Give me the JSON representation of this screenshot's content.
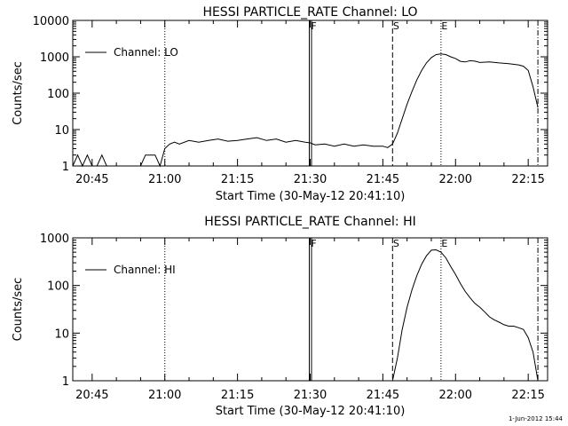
{
  "footer_date": "1-Jun-2012 15:44",
  "chart_data": [
    {
      "type": "line",
      "title": "HESSI PARTICLE_RATE Channel: LO",
      "xlabel": "Start Time (30-May-12 20:41:10)",
      "ylabel": "Counts/sec",
      "y_scale": "log",
      "ylim": [
        1,
        10000
      ],
      "y_ticks": [
        1,
        10,
        100,
        1000,
        10000
      ],
      "y_tick_labels": [
        "1",
        "10",
        "100",
        "1000",
        "10000"
      ],
      "xlim": [
        "20:41",
        "22:19"
      ],
      "x_ticks": [
        "20:45",
        "21:00",
        "21:15",
        "21:30",
        "21:45",
        "22:00",
        "22:15"
      ],
      "legend": {
        "label": "Channel: LO",
        "placement": "top-left"
      },
      "markers": [
        {
          "label": "F",
          "time": "21:30",
          "style": "solid-double"
        },
        {
          "label": "S",
          "time": "21:47",
          "style": "dashed"
        },
        {
          "label": "E",
          "time": "21:57",
          "style": "dotted"
        }
      ],
      "verticals": [
        {
          "time": "21:00",
          "style": "dotted"
        },
        {
          "time": "22:17",
          "style": "dashdot"
        }
      ],
      "series": [
        {
          "name": "Channel: LO",
          "x": [
            "20:41",
            "20:42",
            "20:43",
            "20:44",
            "20:45",
            "20:46",
            "20:47",
            "20:48",
            "20:49",
            "20:50",
            "20:51",
            "20:52",
            "20:53",
            "20:54",
            "20:55",
            "20:56",
            "20:57",
            "20:58",
            "20:59",
            "21:00",
            "21:01",
            "21:02",
            "21:03",
            "21:05",
            "21:07",
            "21:09",
            "21:11",
            "21:13",
            "21:15",
            "21:17",
            "21:19",
            "21:21",
            "21:23",
            "21:25",
            "21:27",
            "21:29",
            "21:30",
            "21:31",
            "21:33",
            "21:35",
            "21:37",
            "21:39",
            "21:41",
            "21:43",
            "21:45",
            "21:46",
            "21:47",
            "21:48",
            "21:49",
            "21:50",
            "21:51",
            "21:52",
            "21:53",
            "21:54",
            "21:55",
            "21:56",
            "21:57",
            "21:58",
            "21:59",
            "22:00",
            "22:01",
            "22:02",
            "22:03",
            "22:04",
            "22:05",
            "22:07",
            "22:09",
            "22:11",
            "22:13",
            "22:14",
            "22:15",
            "22:16",
            "22:17"
          ],
          "y": [
            1,
            2,
            1,
            2,
            1,
            1,
            2,
            1,
            1,
            1,
            1,
            1,
            1,
            1,
            1,
            2,
            2,
            2,
            1,
            3,
            4,
            4.5,
            4,
            5,
            4.5,
            5,
            5.5,
            4.8,
            5,
            5.5,
            6,
            5,
            5.5,
            4.5,
            5,
            4.5,
            4.3,
            3.8,
            4,
            3.5,
            4,
            3.5,
            3.8,
            3.5,
            3.5,
            3.2,
            4,
            8,
            20,
            50,
            110,
            230,
            420,
            680,
            950,
            1150,
            1200,
            1150,
            1000,
            900,
            750,
            720,
            780,
            760,
            700,
            720,
            680,
            650,
            600,
            550,
            420,
            150,
            40
          ]
        }
      ]
    },
    {
      "type": "line",
      "title": "HESSI PARTICLE_RATE Channel: HI",
      "xlabel": "Start Time (30-May-12 20:41:10)",
      "ylabel": "Counts/sec",
      "y_scale": "log",
      "ylim": [
        1,
        1000
      ],
      "y_ticks": [
        1,
        10,
        100,
        1000
      ],
      "y_tick_labels": [
        "1",
        "10",
        "100",
        "1000"
      ],
      "xlim": [
        "20:41",
        "22:19"
      ],
      "x_ticks": [
        "20:45",
        "21:00",
        "21:15",
        "21:30",
        "21:45",
        "22:00",
        "22:15"
      ],
      "legend": {
        "label": "Channel: HI",
        "placement": "top-left"
      },
      "markers": [
        {
          "label": "F",
          "time": "21:30",
          "style": "solid-double"
        },
        {
          "label": "S",
          "time": "21:47",
          "style": "dashed"
        },
        {
          "label": "E",
          "time": "21:57",
          "style": "dotted"
        }
      ],
      "verticals": [
        {
          "time": "21:00",
          "style": "dotted"
        },
        {
          "time": "22:17",
          "style": "dashdot"
        }
      ],
      "series": [
        {
          "name": "Channel: HI",
          "x": [
            "21:47",
            "21:48",
            "21:49",
            "21:50",
            "21:51",
            "21:52",
            "21:53",
            "21:54",
            "21:55",
            "21:56",
            "21:57",
            "21:58",
            "21:59",
            "22:00",
            "22:01",
            "22:02",
            "22:03",
            "22:04",
            "22:05",
            "22:06",
            "22:07",
            "22:08",
            "22:09",
            "22:10",
            "22:11",
            "22:12",
            "22:13",
            "22:14",
            "22:15",
            "22:16",
            "22:17"
          ],
          "y": [
            1,
            3,
            12,
            35,
            80,
            160,
            280,
            420,
            550,
            560,
            500,
            380,
            250,
            170,
            110,
            75,
            55,
            42,
            35,
            28,
            22,
            19,
            17,
            15,
            14,
            14,
            13,
            12,
            8,
            4,
            1
          ]
        }
      ]
    }
  ]
}
